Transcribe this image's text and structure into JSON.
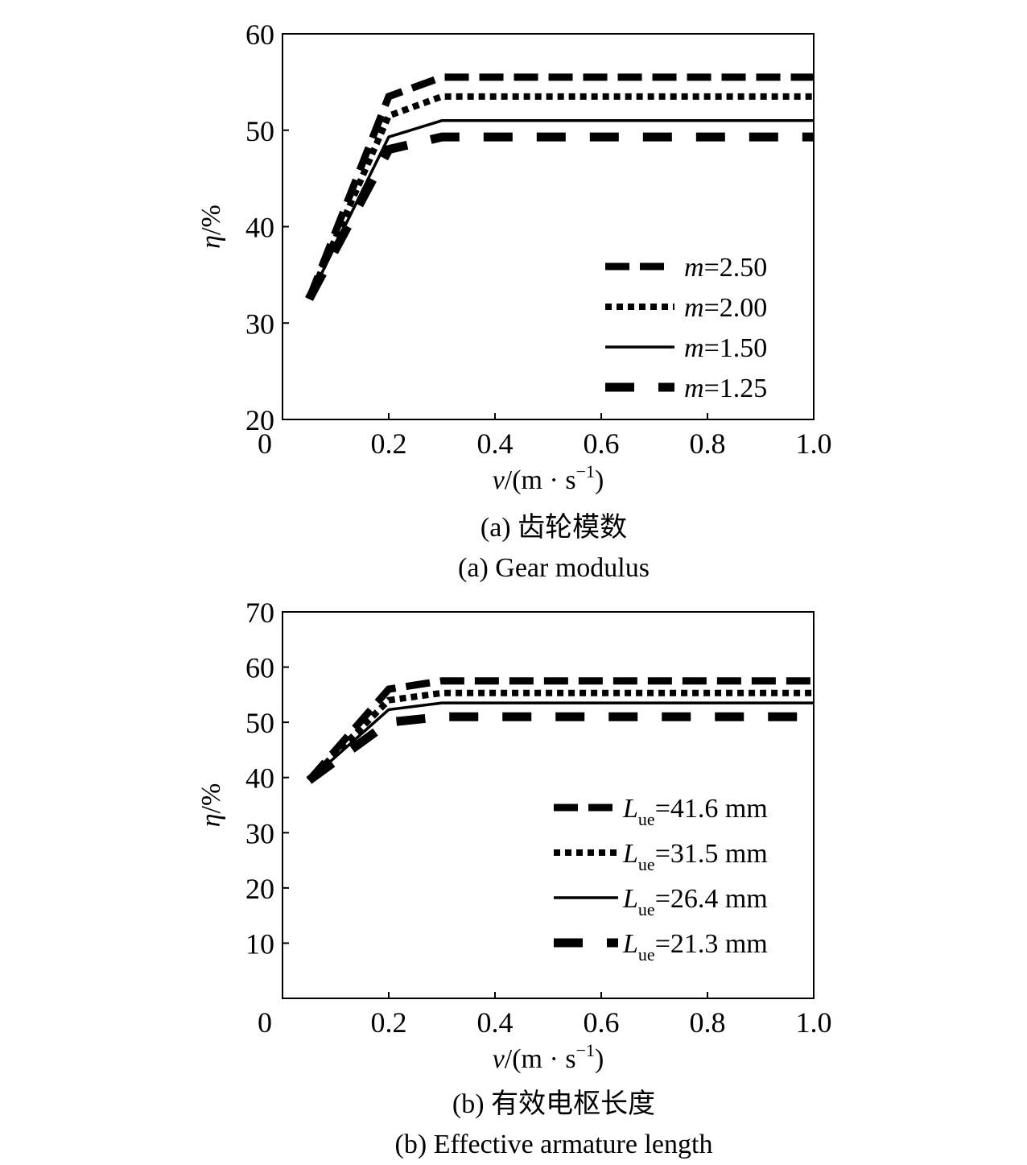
{
  "chart_data": [
    {
      "type": "line",
      "caption_cn": "(a) 齿轮模数",
      "caption_en": "(a) Gear modulus",
      "xlabel": {
        "var": "v",
        "unit": "/(m · s",
        "exp": "−1",
        "close": ")"
      },
      "ylabel": {
        "var": "η",
        "unit": "/%"
      },
      "xlim": [
        0,
        1.0
      ],
      "ylim": [
        20,
        60
      ],
      "x_ticks": [
        "0",
        "0.2",
        "0.4",
        "0.6",
        "0.8",
        "1.0"
      ],
      "x_tick_values": [
        0,
        0.2,
        0.4,
        0.6,
        0.8,
        1.0
      ],
      "y_ticks": [
        "20",
        "30",
        "40",
        "50",
        "60"
      ],
      "y_tick_values": [
        20,
        30,
        40,
        50,
        60
      ],
      "legend_position": "bottom-right",
      "series": [
        {
          "name_var": "m",
          "name_rest": "=2.50",
          "style": "long-dash-thick",
          "x": [
            0.05,
            0.2,
            0.3,
            1.0
          ],
          "y": [
            32.5,
            53.5,
            55.5,
            55.5
          ]
        },
        {
          "name_var": "m",
          "name_rest": "=2.00",
          "style": "dotted-thick",
          "x": [
            0.05,
            0.2,
            0.3,
            1.0
          ],
          "y": [
            32.5,
            51.5,
            53.5,
            53.5
          ]
        },
        {
          "name_var": "m",
          "name_rest": "=1.50",
          "style": "solid",
          "x": [
            0.05,
            0.2,
            0.3,
            1.0
          ],
          "y": [
            32.5,
            49.3,
            51.0,
            51.0
          ]
        },
        {
          "name_var": "m",
          "name_rest": "=1.25",
          "style": "wide-dash",
          "x": [
            0.05,
            0.2,
            0.3,
            1.0
          ],
          "y": [
            32.5,
            48.0,
            49.3,
            49.3
          ]
        }
      ]
    },
    {
      "type": "line",
      "caption_cn": "(b) 有效电枢长度",
      "caption_en": "(b) Effective armature length",
      "xlabel": {
        "var": "v",
        "unit": "/(m · s",
        "exp": "−1",
        "close": ")"
      },
      "ylabel": {
        "var": "η",
        "unit": "/%"
      },
      "xlim": [
        0,
        1.0
      ],
      "ylim": [
        0,
        70
      ],
      "x_ticks": [
        "0",
        "0.2",
        "0.4",
        "0.6",
        "0.8",
        "1.0"
      ],
      "x_tick_values": [
        0,
        0.2,
        0.4,
        0.6,
        0.8,
        1.0
      ],
      "y_ticks": [
        "10",
        "20",
        "30",
        "40",
        "50",
        "60",
        "70"
      ],
      "y_tick_values": [
        10,
        20,
        30,
        40,
        50,
        60,
        70
      ],
      "legend_position": "bottom-right",
      "series": [
        {
          "name_var": "L",
          "name_sub": "ue",
          "name_rest": "=41.6 mm",
          "style": "long-dash-thick",
          "x": [
            0.05,
            0.2,
            0.3,
            1.0
          ],
          "y": [
            39.5,
            56.0,
            57.5,
            57.5
          ]
        },
        {
          "name_var": "L",
          "name_sub": "ue",
          "name_rest": "=31.5 mm",
          "style": "dotted-thick",
          "x": [
            0.05,
            0.2,
            0.3,
            1.0
          ],
          "y": [
            39.5,
            54.0,
            55.3,
            55.3
          ]
        },
        {
          "name_var": "L",
          "name_sub": "ue",
          "name_rest": "=26.4 mm",
          "style": "solid",
          "x": [
            0.05,
            0.2,
            0.3,
            1.0
          ],
          "y": [
            39.5,
            52.3,
            53.5,
            53.5
          ]
        },
        {
          "name_var": "L",
          "name_sub": "ue",
          "name_rest": "=21.3 mm",
          "style": "wide-dash",
          "x": [
            0.05,
            0.2,
            0.3,
            1.0
          ],
          "y": [
            39.5,
            50.0,
            51.0,
            51.0
          ]
        }
      ]
    }
  ]
}
